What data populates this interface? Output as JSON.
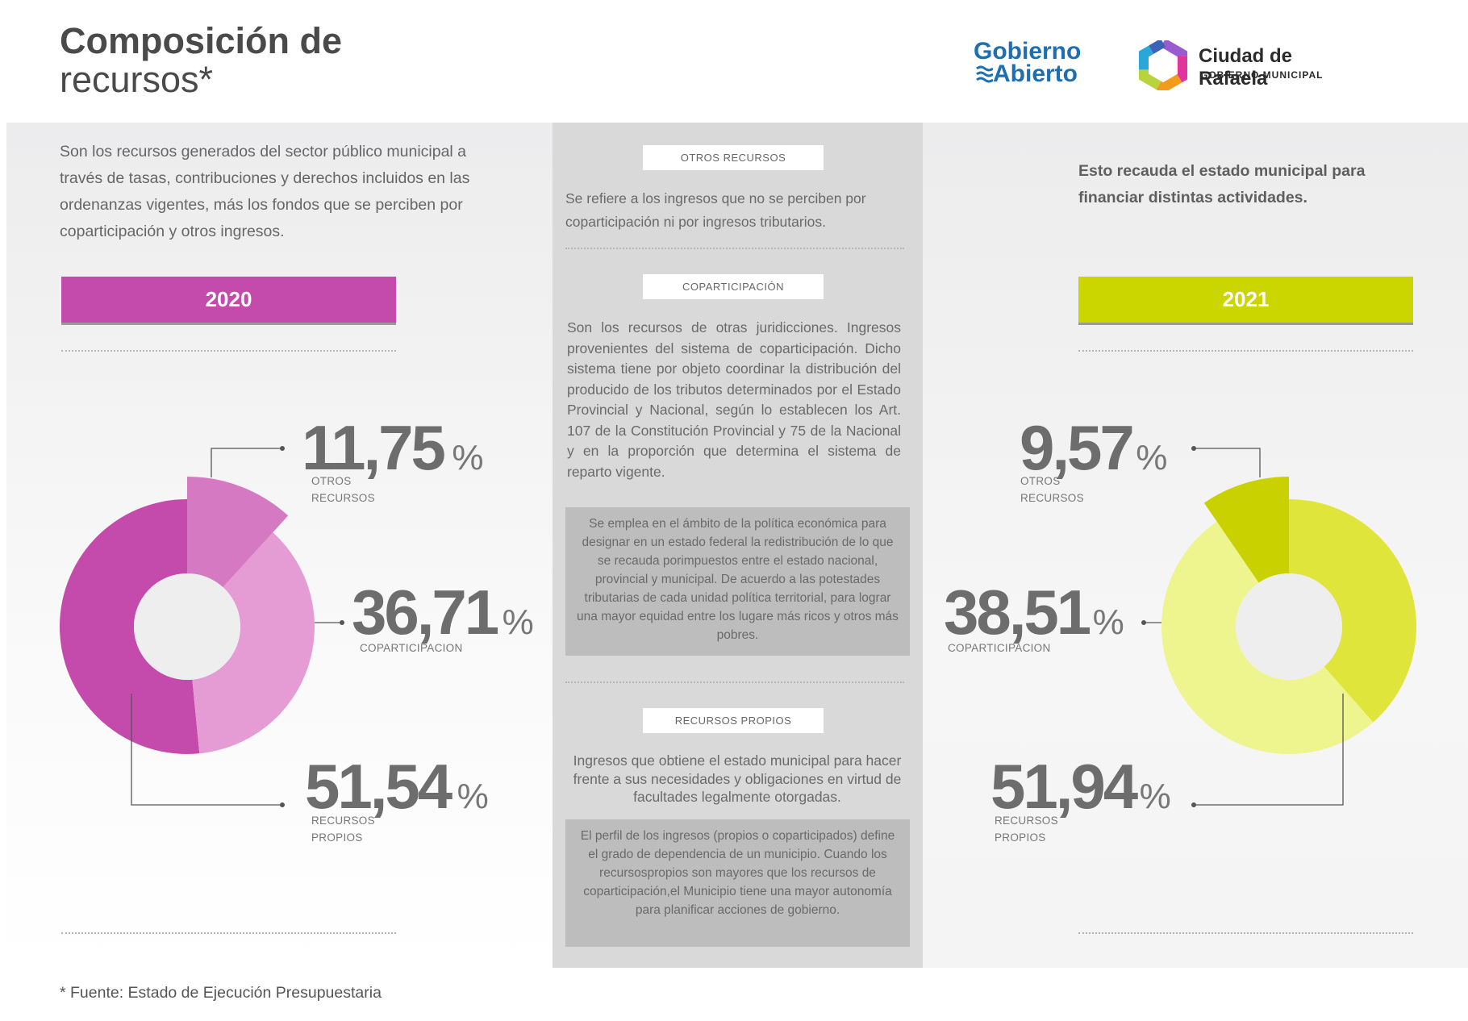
{
  "header": {
    "title_line1": "Composición de",
    "title_line2": "recursos*",
    "logo_gobierno_line1": "Gobierno",
    "logo_gobierno_line2": "Abierto",
    "logo_rafaela_title": "Ciudad de Rafaela",
    "logo_rafaela_sub": "GOBIERNO MUNICIPAL"
  },
  "left": {
    "intro": "Son los recursos generados del sector público municipal a través de tasas, contribuciones y derechos incluidos en las ordenanzas vigentes, más los fondos que se perciben por coparticipación y otros ingresos.",
    "year": "2020"
  },
  "right": {
    "intro": "Esto recauda el estado municipal para financiar distintas actividades.",
    "year": "2021"
  },
  "middle": {
    "otros_label": "OTROS RECURSOS",
    "otros_text": "Se refiere a los ingresos que no se perciben por coparticipación ni por ingresos tributarios.",
    "copa_label": "COPARTICIPACIÓN",
    "copa_text": "Son los recursos de otras juridicciones. Ingresos provenientes del sistema de coparticipación. Dicho sistema tiene por objeto coordinar la distribución del producido de los tributos determinados por el Estado Provincial y Nacional, según lo establecen los Art. 107 de la Constitución Provincial y 75 de la Nacional y en la proporción que determina el sistema de reparto vigente.",
    "copa_box": "Se emplea en el ámbito de la política económica para designar en un estado federal la redistribución de lo que se recauda porimpuestos entre el estado nacional, provincial y municipal. De acuerdo a las potestades tributarias de cada unidad política territorial, para lograr una mayor equidad entre los lugare más ricos y otros más pobres.",
    "propios_label": "RECURSOS PROPIOS",
    "propios_text": "Ingresos que obtiene el estado municipal para hacer frente a sus necesidades y obligaciones en virtud de facultades legalmente otorgadas.",
    "propios_box": "El perfil de los ingresos (propios o coparticipados) define el grado de dependencia de un municipio. Cuando los recursospropios son mayores que los recursos de coparticipación,el Municipio tiene una mayor autonomía para planificar acciones de gobierno."
  },
  "footer": "* Fuente: Estado de Ejecución Presupuestaria",
  "chart_data": [
    {
      "type": "pie",
      "title": "2020",
      "categories": [
        "OTROS RECURSOS",
        "COPARTICIPACION",
        "RECURSOS PROPIOS"
      ],
      "values": [
        11.75,
        36.71,
        51.54
      ],
      "value_labels": [
        "11,75",
        "36,71",
        "51,54"
      ],
      "unit": "%",
      "colors": [
        "#d57ac2",
        "#e59bd3",
        "#c44bab"
      ]
    },
    {
      "type": "pie",
      "title": "2021",
      "categories": [
        "OTROS RECURSOS",
        "COPARTICIPACION",
        "RECURSOS PROPIOS"
      ],
      "values": [
        9.57,
        38.51,
        51.94
      ],
      "value_labels": [
        "9,57",
        "38,51",
        "51,94"
      ],
      "unit": "%",
      "colors": [
        "#c9d200",
        "#dfe53a",
        "#eff58e"
      ]
    }
  ]
}
